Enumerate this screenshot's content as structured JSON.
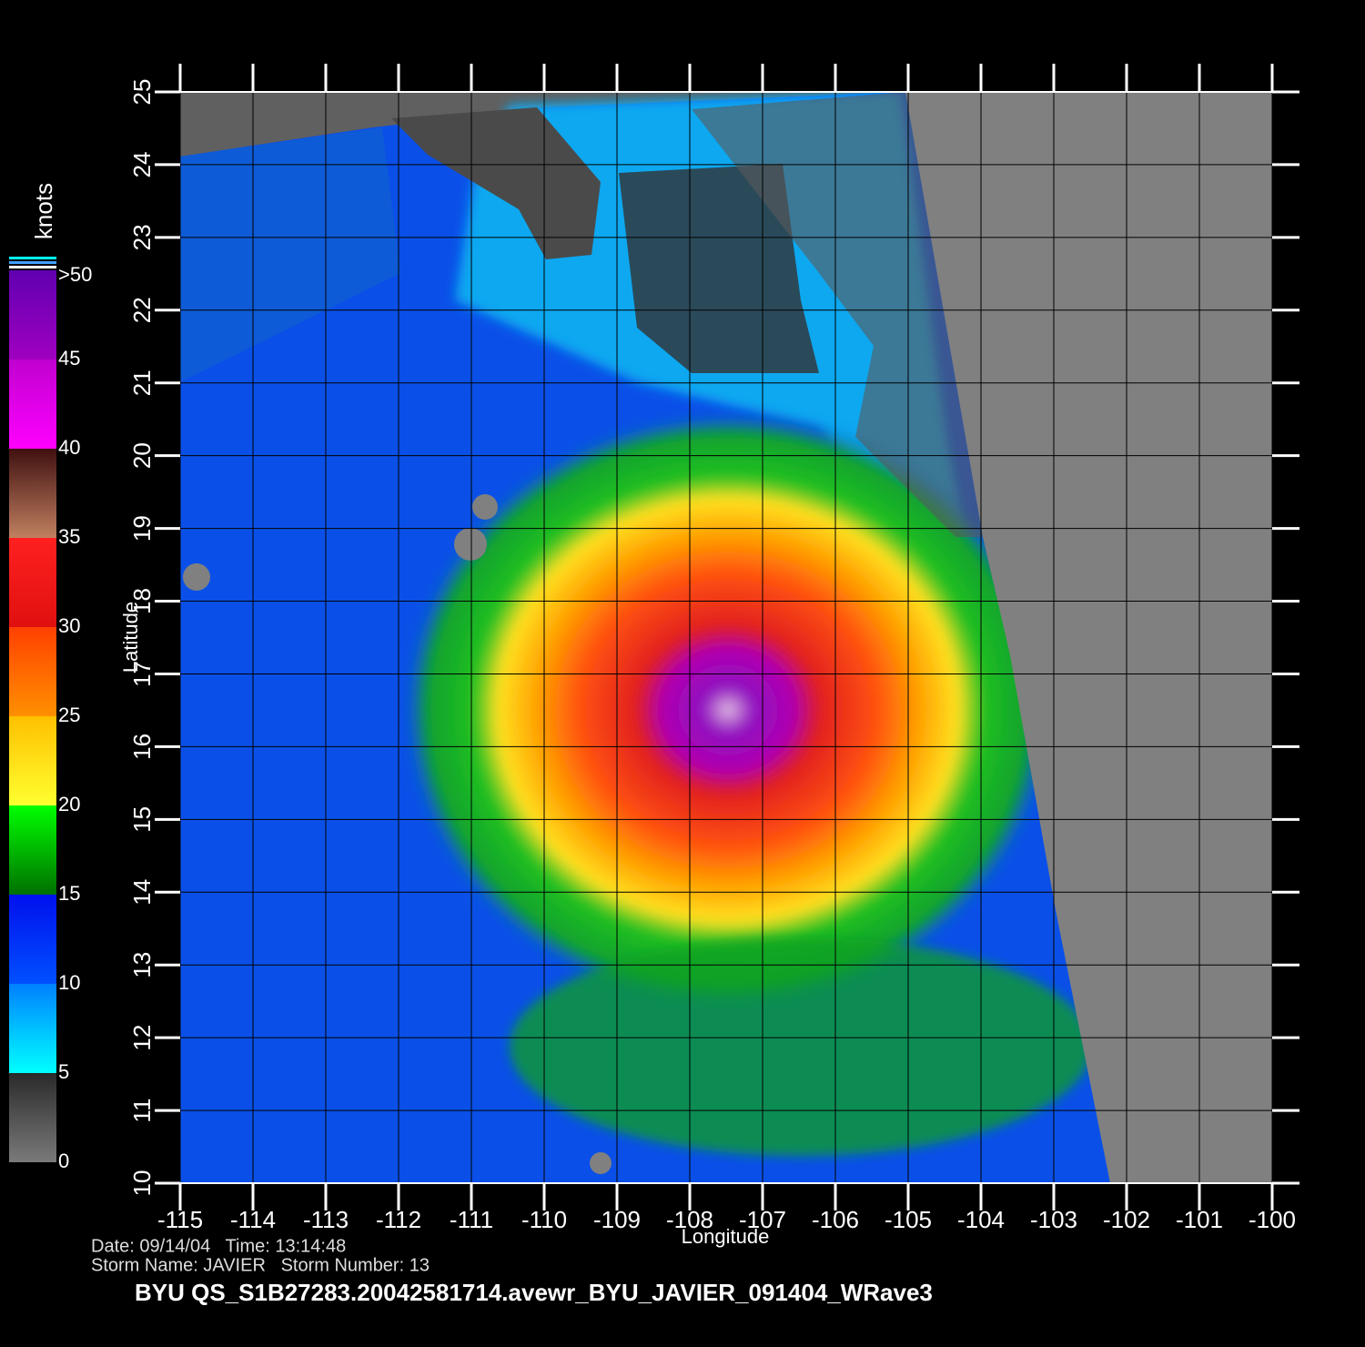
{
  "map": {
    "xlabel": "Longitude",
    "ylabel": "Latitude",
    "xlim": [
      -115,
      -100
    ],
    "ylim": [
      10,
      25
    ],
    "xticks": [
      -115,
      -114,
      -113,
      -112,
      -111,
      -110,
      -109,
      -108,
      -107,
      -106,
      -105,
      -104,
      -103,
      -102,
      -101,
      -100
    ],
    "yticks": [
      10,
      11,
      12,
      13,
      14,
      15,
      16,
      17,
      18,
      19,
      20,
      21,
      22,
      23,
      24,
      25
    ],
    "grid": true
  },
  "colorbar": {
    "title": "knots",
    "lim": [
      0,
      50
    ],
    "ticks": [
      0,
      5,
      10,
      15,
      20,
      25,
      30,
      35,
      40,
      45,
      {
        "value": 50,
        "label": ">50"
      }
    ]
  },
  "footer": {
    "line1": "Date: 09/14/04   Time: 13:14:48",
    "line2": "Storm Name: JAVIER   Storm Number: 13",
    "file": "BYU QS_S1B27283.20042581714.avewr_BYU_JAVIER_091404_WRave3"
  }
}
